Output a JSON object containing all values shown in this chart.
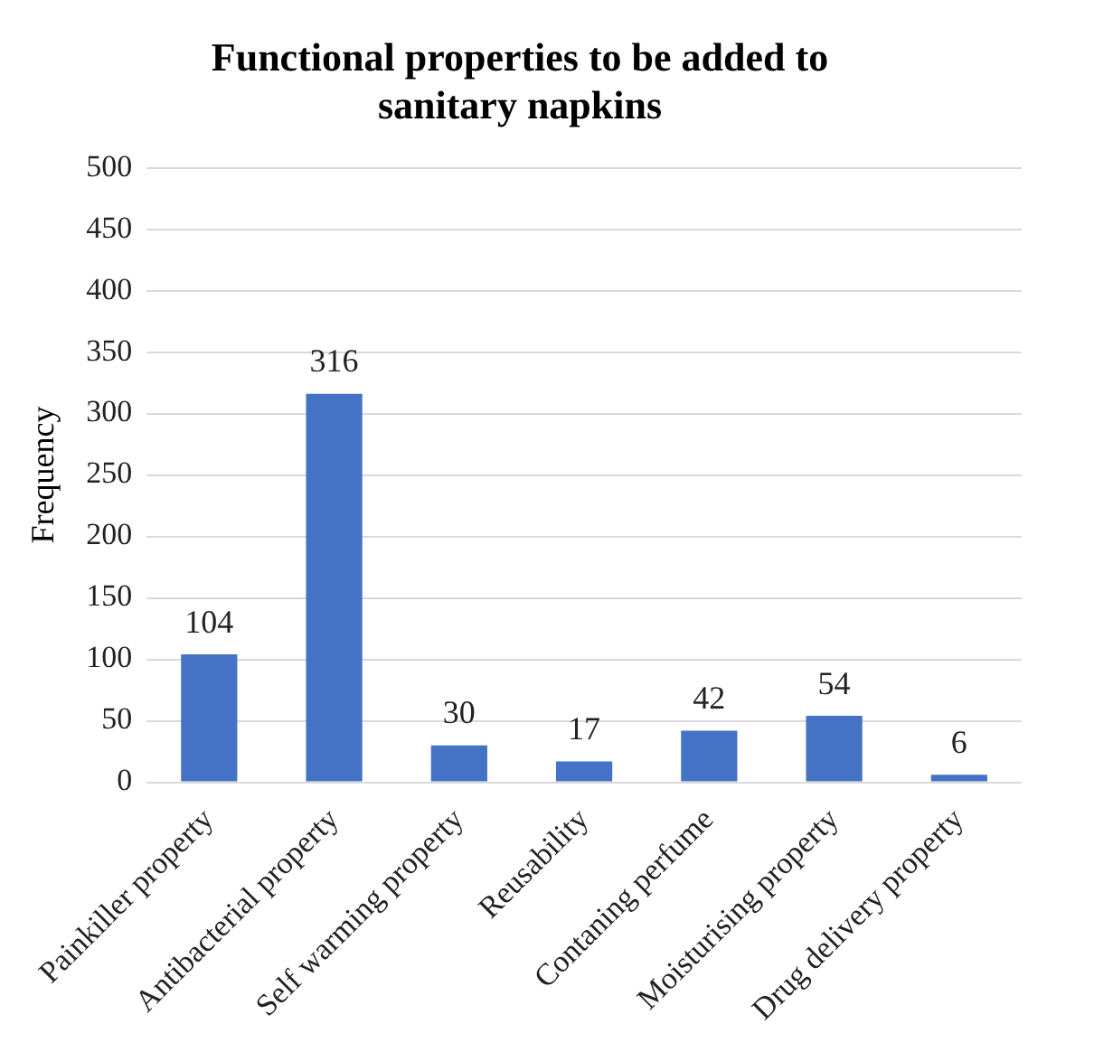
{
  "chart_data": {
    "type": "bar",
    "title": "Functional properties to be added to sanitary napkins",
    "ylabel": "Frequency",
    "categories": [
      "Painkiller property",
      "Antibacterial property",
      "Self warming property",
      "Reusability",
      "Contaning perfume",
      "Moisturising property",
      "Drug delivery property"
    ],
    "values": [
      104,
      316,
      30,
      17,
      42,
      54,
      6
    ],
    "color": "#4472c4",
    "ylim": [
      0,
      500
    ],
    "yticks": [
      0,
      50,
      100,
      150,
      200,
      250,
      300,
      350,
      400,
      450,
      500
    ],
    "grid": "y",
    "legend": false,
    "data_labels": true
  }
}
